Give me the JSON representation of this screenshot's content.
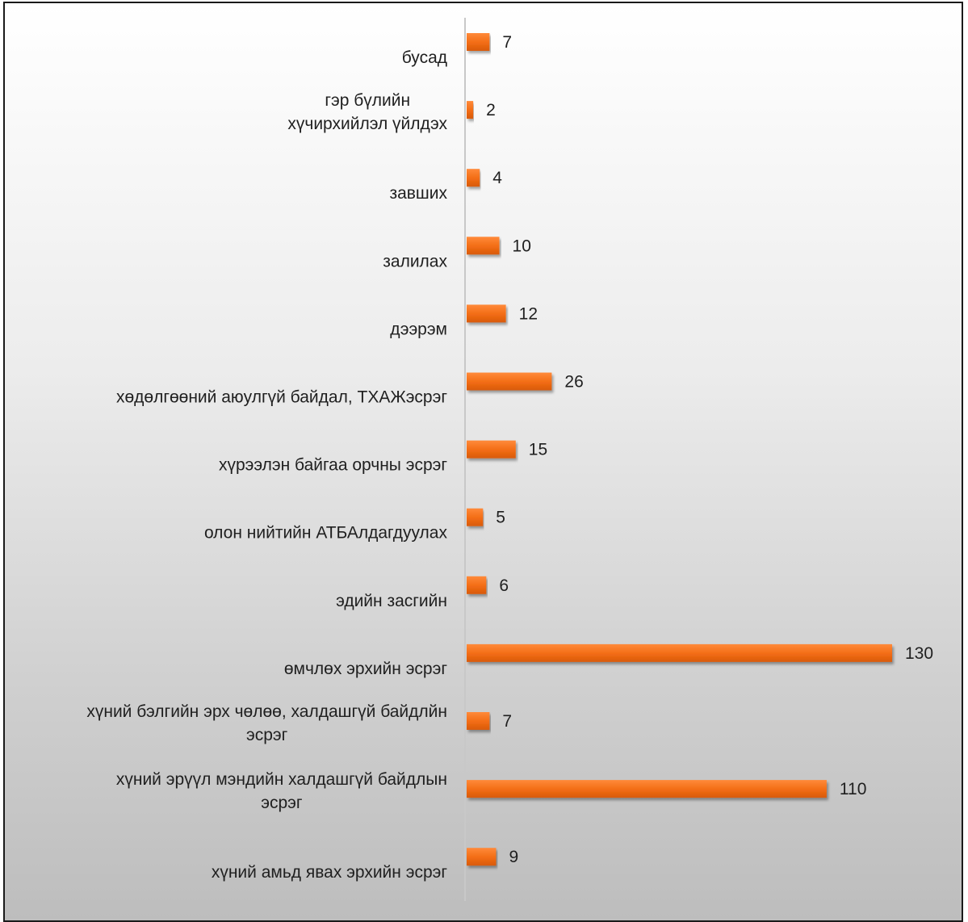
{
  "chart_data": {
    "type": "bar",
    "orientation": "horizontal",
    "categories": [
      "бусад",
      "гэр бүлийн хүчирхийлэл үйлдэх",
      "завших",
      "залилах",
      "дээрэм",
      "хөдөлгөөний аюулгүй байдал, ТХАЖэсрэг",
      "хүрээлэн байгаа орчны эсрэг",
      "олон нийтийн АТБАлдагдуулах",
      "эдийн засгийн",
      "өмчлөх эрхийн эсрэг",
      "хүний бэлгийн эрх чөлөө, халдашгүй байдлйн эсрэг",
      "хүний эрүүл мэндийн халдашгүй байдлын эсрэг",
      "хүний амьд явах эрхийн эсрэг"
    ],
    "label_lines": [
      [
        "бусад"
      ],
      [
        "гэр бүлийн",
        "хүчирхийлэл үйлдэх"
      ],
      [
        "завших"
      ],
      [
        "залилах"
      ],
      [
        "дээрэм"
      ],
      [
        "хөдөлгөөний аюулгүй байдал, ТХАЖэсрэг"
      ],
      [
        "хүрээлэн байгаа орчны эсрэг"
      ],
      [
        "олон нийтийн АТБАлдагдуулах"
      ],
      [
        "эдийн засгийн"
      ],
      [
        "өмчлөх эрхийн эсрэг"
      ],
      [
        "хүний бэлгийн эрх чөлөө, халдашгүй байдлйн",
        "эсрэг"
      ],
      [
        "хүний эрүүл мэндийн халдашгүй байдлын",
        "эсрэг"
      ],
      [
        "хүний амьд явах эрхийн эсрэг"
      ]
    ],
    "values": [
      7,
      2,
      4,
      10,
      12,
      26,
      15,
      5,
      6,
      130,
      7,
      110,
      9
    ],
    "title": "",
    "xlabel": "",
    "ylabel": "",
    "xlim": [
      0,
      130
    ],
    "grid": false,
    "legend": "none",
    "bar_color": "#f26c14",
    "bar_color_dark": "#d85a0a"
  }
}
